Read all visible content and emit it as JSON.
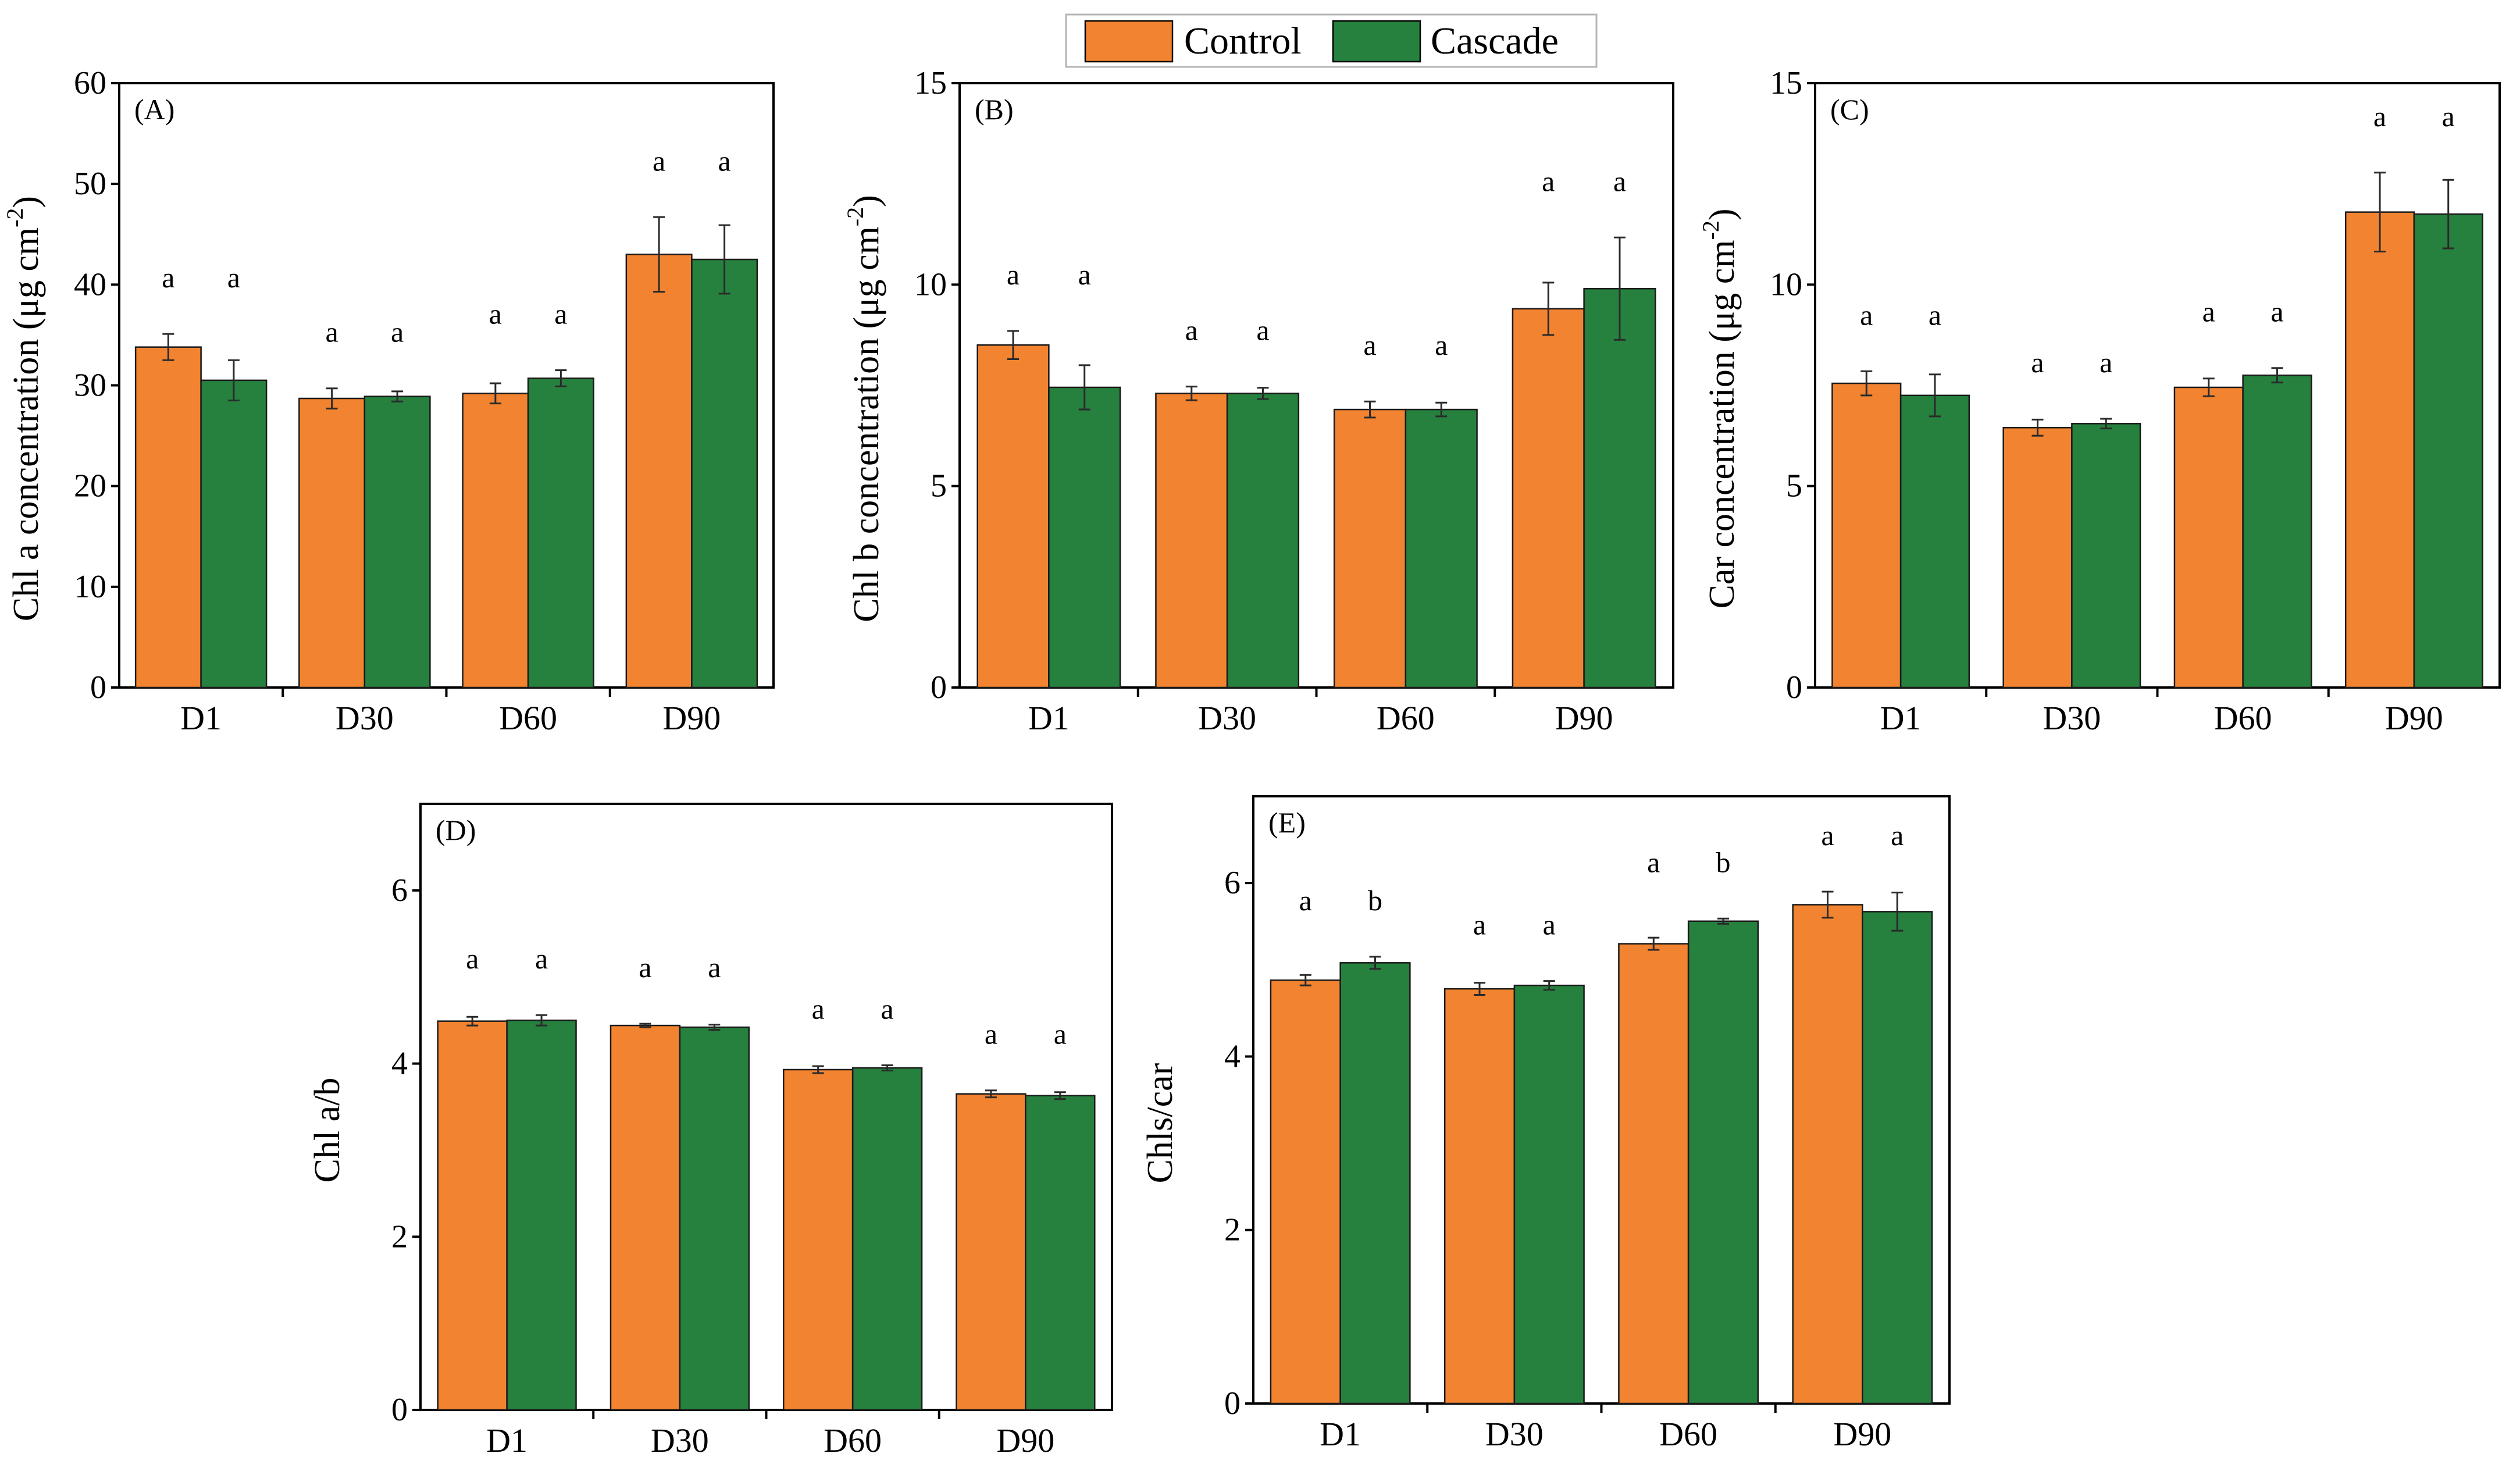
{
  "legend": {
    "items": [
      {
        "label": "Control",
        "color": "#F28330"
      },
      {
        "label": "Cascade",
        "color": "#26803E"
      }
    ]
  },
  "colors": {
    "control": "#F28330",
    "cascade": "#26803E",
    "axis": "#000000"
  },
  "chart_data": [
    {
      "type": "bar",
      "panel": "(A)",
      "ylabel_main": "Chl a concentration (μg cm",
      "ylabel_sup": "-2",
      "ylabel_end": ")",
      "categories": [
        "D1",
        "D30",
        "D60",
        "D90"
      ],
      "ylim": [
        0,
        60
      ],
      "yticks": [
        0,
        10,
        20,
        30,
        40,
        50,
        60
      ],
      "series": [
        {
          "name": "Control",
          "values": [
            33.8,
            28.7,
            29.2,
            43.0
          ],
          "errors": [
            1.3,
            1.0,
            1.0,
            3.7
          ],
          "letters": [
            "a",
            "a",
            "a",
            "a"
          ]
        },
        {
          "name": "Cascade",
          "values": [
            30.5,
            28.9,
            30.7,
            42.5
          ],
          "errors": [
            2.0,
            0.5,
            0.8,
            3.4
          ],
          "letters": [
            "a",
            "a",
            "a",
            "a"
          ]
        }
      ]
    },
    {
      "type": "bar",
      "panel": "(B)",
      "ylabel_main": "Chl b concentration (μg cm",
      "ylabel_sup": "-2",
      "ylabel_end": ")",
      "categories": [
        "D1",
        "D30",
        "D60",
        "D90"
      ],
      "ylim": [
        0,
        15
      ],
      "yticks": [
        0,
        5,
        10,
        15
      ],
      "series": [
        {
          "name": "Control",
          "values": [
            8.5,
            7.3,
            6.9,
            9.4
          ],
          "errors": [
            0.35,
            0.17,
            0.2,
            0.65
          ],
          "letters": [
            "a",
            "a",
            "a",
            "a"
          ]
        },
        {
          "name": "Cascade",
          "values": [
            7.45,
            7.3,
            6.9,
            9.9
          ],
          "errors": [
            0.55,
            0.14,
            0.17,
            1.27
          ],
          "letters": [
            "a",
            "a",
            "a",
            "a"
          ]
        }
      ]
    },
    {
      "type": "bar",
      "panel": "(C)",
      "ylabel_main": "Car concentration (μg cm",
      "ylabel_sup": "-2",
      "ylabel_end": ")",
      "categories": [
        "D1",
        "D30",
        "D60",
        "D90"
      ],
      "ylim": [
        0,
        15
      ],
      "yticks": [
        0,
        5,
        10,
        15
      ],
      "series": [
        {
          "name": "Control",
          "values": [
            7.55,
            6.45,
            7.45,
            11.8
          ],
          "errors": [
            0.3,
            0.2,
            0.22,
            0.98
          ],
          "letters": [
            "a",
            "a",
            "a",
            "a"
          ]
        },
        {
          "name": "Cascade",
          "values": [
            7.25,
            6.55,
            7.75,
            11.75
          ],
          "errors": [
            0.52,
            0.12,
            0.18,
            0.85
          ],
          "letters": [
            "a",
            "a",
            "a",
            "a"
          ]
        }
      ]
    },
    {
      "type": "bar",
      "panel": "(D)",
      "ylabel_main": "Chl a/b",
      "ylabel_sup": "",
      "ylabel_end": "",
      "categories": [
        "D1",
        "D30",
        "D60",
        "D90"
      ],
      "ylim": [
        0,
        7
      ],
      "yticks": [
        0,
        2,
        4,
        6
      ],
      "series": [
        {
          "name": "Control",
          "values": [
            4.49,
            4.44,
            3.93,
            3.65
          ],
          "errors": [
            0.05,
            0.02,
            0.04,
            0.04
          ],
          "letters": [
            "a",
            "a",
            "a",
            "a"
          ]
        },
        {
          "name": "Cascade",
          "values": [
            4.5,
            4.42,
            3.95,
            3.63
          ],
          "errors": [
            0.06,
            0.03,
            0.03,
            0.04
          ],
          "letters": [
            "a",
            "a",
            "a",
            "a"
          ]
        }
      ]
    },
    {
      "type": "bar",
      "panel": "(E)",
      "ylabel_main": "Chls/car",
      "ylabel_sup": "",
      "ylabel_end": "",
      "categories": [
        "D1",
        "D30",
        "D60",
        "D90"
      ],
      "ylim": [
        0,
        7
      ],
      "yticks": [
        0,
        2,
        4,
        6
      ],
      "series": [
        {
          "name": "Control",
          "values": [
            4.88,
            4.78,
            5.3,
            5.75
          ],
          "errors": [
            0.06,
            0.07,
            0.07,
            0.15
          ],
          "letters": [
            "a",
            "a",
            "a",
            "a"
          ]
        },
        {
          "name": "Cascade",
          "values": [
            5.08,
            4.82,
            5.56,
            5.67
          ],
          "errors": [
            0.07,
            0.05,
            0.03,
            0.22
          ],
          "letters": [
            "b",
            "a",
            "b",
            "a"
          ]
        }
      ]
    }
  ]
}
